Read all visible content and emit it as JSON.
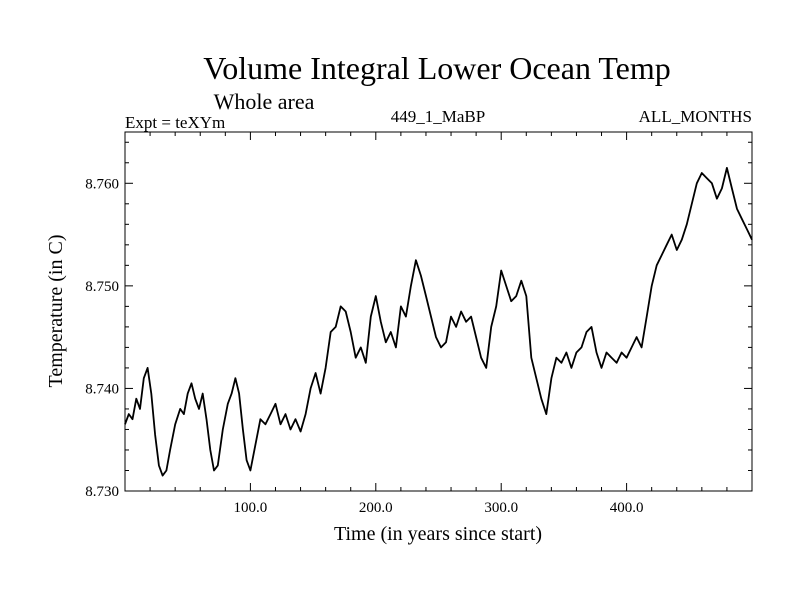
{
  "chart_data": {
    "type": "line",
    "title": "Volume Integral Lower Ocean Temp",
    "subtitle": "Whole area",
    "left_label": "Expt = teXYm",
    "center_label": "449_1_MaBP",
    "right_label": "ALL_MONTHS",
    "xlabel": "Time (in years since start)",
    "ylabel": "Temperature (in C)",
    "xlim": [
      0,
      500
    ],
    "ylim": [
      8.73,
      8.765
    ],
    "x_ticks": [
      100,
      200,
      300,
      400
    ],
    "x_tick_labels": [
      "100.0",
      "200.0",
      "300.0",
      "400.0"
    ],
    "y_ticks": [
      8.73,
      8.74,
      8.75,
      8.76
    ],
    "y_tick_labels": [
      "8.730",
      "8.740",
      "8.750",
      "8.760"
    ],
    "grid": false,
    "line_color": "#000000",
    "series": [
      {
        "x": [
          0,
          3,
          6,
          9,
          12,
          15,
          18,
          21,
          24,
          27,
          30,
          33,
          36,
          40,
          44,
          47,
          50,
          53,
          56,
          59,
          62,
          65,
          68,
          71,
          74,
          78,
          82,
          85,
          88,
          91,
          94,
          97,
          100,
          104,
          108,
          112,
          116,
          120,
          124,
          128,
          132,
          136,
          140,
          144,
          148,
          152,
          156,
          160,
          164,
          168,
          172,
          176,
          180,
          184,
          188,
          192,
          196,
          200,
          204,
          208,
          212,
          216,
          220,
          224,
          228,
          232,
          236,
          240,
          244,
          248,
          252,
          256,
          260,
          264,
          268,
          272,
          276,
          280,
          284,
          288,
          292,
          296,
          300,
          304,
          308,
          312,
          316,
          320,
          324,
          328,
          332,
          336,
          340,
          344,
          348,
          352,
          356,
          360,
          364,
          368,
          372,
          376,
          380,
          384,
          388,
          392,
          396,
          400,
          404,
          408,
          412,
          416,
          420,
          424,
          428,
          432,
          436,
          440,
          444,
          448,
          452,
          456,
          460,
          464,
          468,
          472,
          476,
          480,
          484,
          488,
          492,
          496,
          500
        ],
        "y": [
          8.7365,
          8.7375,
          8.737,
          8.739,
          8.738,
          8.741,
          8.742,
          8.7395,
          8.7355,
          8.7325,
          8.7315,
          8.732,
          8.734,
          8.7365,
          8.738,
          8.7375,
          8.7395,
          8.7405,
          8.739,
          8.738,
          8.7395,
          8.737,
          8.734,
          8.732,
          8.7325,
          8.736,
          8.7385,
          8.7395,
          8.741,
          8.7395,
          8.736,
          8.733,
          8.732,
          8.7345,
          8.737,
          8.7365,
          8.7375,
          8.7385,
          8.7365,
          8.7375,
          8.736,
          8.737,
          8.7358,
          8.7375,
          8.74,
          8.7415,
          8.7395,
          8.742,
          8.7455,
          8.746,
          8.748,
          8.7475,
          8.7455,
          8.743,
          8.744,
          8.7425,
          8.747,
          8.749,
          8.7465,
          8.7445,
          8.7455,
          8.744,
          8.748,
          8.747,
          8.75,
          8.7525,
          8.751,
          8.749,
          8.747,
          8.745,
          8.744,
          8.7445,
          8.747,
          8.746,
          8.7475,
          8.7465,
          8.747,
          8.745,
          8.743,
          8.742,
          8.746,
          8.748,
          8.7515,
          8.75,
          8.7485,
          8.749,
          8.7505,
          8.749,
          8.743,
          8.741,
          8.739,
          8.7375,
          8.741,
          8.743,
          8.7425,
          8.7435,
          8.742,
          8.7435,
          8.744,
          8.7455,
          8.746,
          8.7435,
          8.742,
          8.7435,
          8.743,
          8.7425,
          8.7435,
          8.743,
          8.744,
          8.745,
          8.744,
          8.747,
          8.75,
          8.752,
          8.753,
          8.754,
          8.755,
          8.7535,
          8.7545,
          8.756,
          8.758,
          8.76,
          8.761,
          8.7605,
          8.76,
          8.7585,
          8.7595,
          8.7615,
          8.7595,
          8.7575,
          8.7565,
          8.7555,
          8.7545
        ]
      }
    ]
  }
}
